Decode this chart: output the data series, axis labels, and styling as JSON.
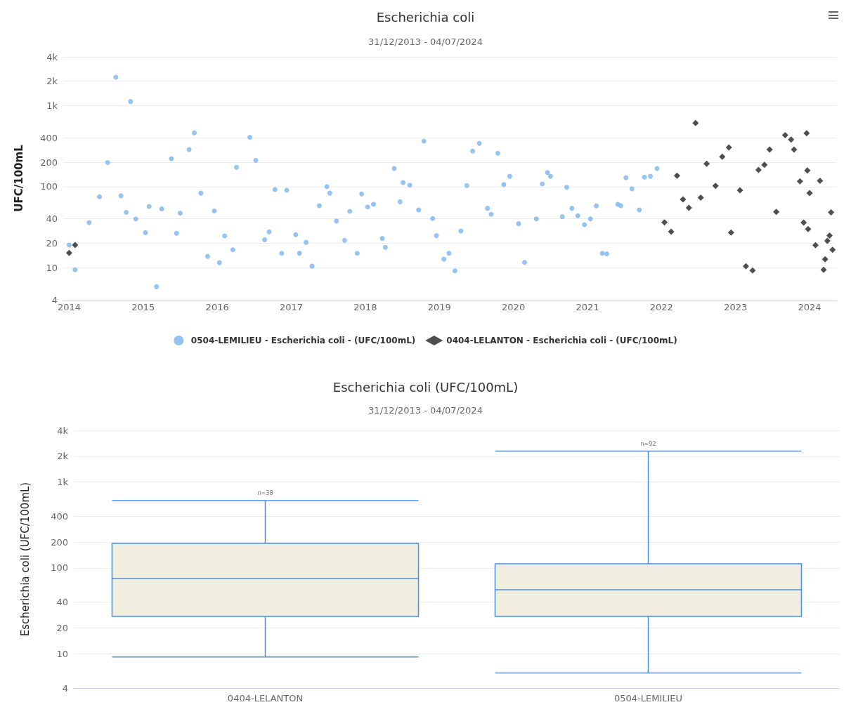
{
  "chart_data": [
    {
      "type": "scatter",
      "title": "Escherichia coli",
      "subtitle": "31/12/2013 - 04/07/2024",
      "ylabel": "UFC/100mL",
      "log": "y",
      "grid": "y",
      "legend": "bottom",
      "xlim": [
        2013.92,
        2024.36
      ],
      "xticks": [
        2014,
        2015,
        2016,
        2017,
        2018,
        2019,
        2020,
        2021,
        2022,
        2023,
        2024
      ],
      "ylim": [
        4,
        4000
      ],
      "yticks": [
        4,
        10,
        20,
        40,
        100,
        200,
        400,
        {
          "value": 1000,
          "label": "1k"
        },
        {
          "value": 2000,
          "label": "2k"
        },
        {
          "value": 4000,
          "label": "4k"
        }
      ],
      "series": [
        {
          "name": "0504-LEMILIEU - Escherichia coli - (UFC/100mL)",
          "color": "#7cb5ec",
          "marker": "circle",
          "x": [
            2014.0,
            2014.08,
            2014.27,
            2014.41,
            2014.52,
            2014.63,
            2014.7,
            2014.77,
            2014.83,
            2014.9,
            2015.03,
            2015.08,
            2015.18,
            2015.25,
            2015.38,
            2015.45,
            2015.5,
            2015.62,
            2015.69,
            2015.78,
            2015.87,
            2015.96,
            2016.03,
            2016.1,
            2016.21,
            2016.26,
            2016.44,
            2016.52,
            2016.64,
            2016.7,
            2016.78,
            2016.87,
            2016.94,
            2017.06,
            2017.11,
            2017.2,
            2017.28,
            2017.38,
            2017.48,
            2017.52,
            2017.61,
            2017.72,
            2017.79,
            2017.89,
            2017.95,
            2018.03,
            2018.11,
            2018.23,
            2018.27,
            2018.39,
            2018.47,
            2018.51,
            2018.6,
            2018.72,
            2018.79,
            2018.91,
            2018.96,
            2019.06,
            2019.13,
            2019.21,
            2019.29,
            2019.37,
            2019.45,
            2019.54,
            2019.65,
            2019.7,
            2019.79,
            2019.87,
            2019.95,
            2020.07,
            2020.15,
            2020.31,
            2020.39,
            2020.46,
            2020.5,
            2020.66,
            2020.72,
            2020.79,
            2020.87,
            2020.96,
            2021.04,
            2021.12,
            2021.2,
            2021.26,
            2021.41,
            2021.45,
            2021.52,
            2021.6,
            2021.7,
            2021.77,
            2021.85,
            2021.94
          ],
          "values": [
            19,
            9.4,
            36,
            75,
            198,
            2245,
            77,
            48,
            1123,
            40,
            27,
            57,
            5.8,
            53,
            221,
            26.5,
            47,
            287,
            461,
            83,
            13.7,
            50,
            11.5,
            24.6,
            16.6,
            173,
            406,
            211,
            22,
            27.6,
            92,
            15,
            90,
            25.5,
            15,
            20.5,
            10.4,
            58,
            100,
            83,
            37.5,
            21.7,
            49.5,
            15,
            81,
            56,
            60.5,
            22.9,
            17.8,
            167,
            65,
            112,
            104,
            51.5,
            365,
            40.3,
            24.8,
            12.7,
            15,
            9.1,
            28.3,
            103,
            274,
            341,
            54,
            45.5,
            258,
            106,
            134,
            34.8,
            11.6,
            40,
            108,
            149,
            134,
            42.5,
            98,
            54,
            43.7,
            33.9,
            40,
            57.8,
            15,
            14.8,
            60.5,
            58,
            129,
            94,
            51.5,
            131,
            134,
            167
          ]
        },
        {
          "name": "0404-LELANTON - Escherichia coli - (UFC/100mL)",
          "color": "#222222",
          "marker": "diamond",
          "x": [
            2014.0,
            2014.08,
            2022.04,
            2022.13,
            2022.21,
            2022.29,
            2022.37,
            2022.46,
            2022.53,
            2022.61,
            2022.73,
            2022.82,
            2022.91,
            2022.94,
            2023.06,
            2023.14,
            2023.23,
            2023.31,
            2023.39,
            2023.46,
            2023.55,
            2023.67,
            2023.75,
            2023.79,
            2023.87,
            2023.92,
            2023.96,
            2023.97,
            2023.98,
            2024.0,
            2024.08,
            2024.14,
            2024.19,
            2024.21,
            2024.24,
            2024.27,
            2024.29,
            2024.31
          ],
          "values": [
            15.2,
            19,
            36.2,
            27.7,
            136,
            69.5,
            54.7,
            610,
            73,
            191,
            102,
            234,
            305,
            27,
            90,
            10.4,
            9.2,
            161,
            186,
            287,
            48.8,
            431,
            382,
            287,
            116,
            36,
            457,
            158,
            29.9,
            83,
            18.9,
            118,
            9.4,
            12.7,
            21.4,
            24.8,
            48,
            16.6
          ]
        }
      ]
    },
    {
      "type": "box",
      "title": "Escherichia coli (UFC/100mL)",
      "subtitle": "31/12/2013 - 04/07/2024",
      "ylabel": "Escherichia coli (UFC/100mL)",
      "log": "y",
      "grid": "y",
      "legend": false,
      "categories": [
        "0404-LELANTON",
        "0504-LEMILIEU"
      ],
      "ylim": [
        4,
        4000
      ],
      "yticks": [
        4,
        10,
        20,
        40,
        100,
        200,
        400,
        {
          "value": 1000,
          "label": "1k"
        },
        {
          "value": 2000,
          "label": "2k"
        },
        {
          "value": 4000,
          "label": "4k"
        }
      ],
      "series": [
        {
          "color": "#4a90e2",
          "boxes": [
            {
              "low": 9.2,
              "q1": 27.3,
              "median": 75.5,
              "q3": 193,
              "high": 610
            },
            {
              "low": 6,
              "q1": 27.3,
              "median": 55.8,
              "q3": 112,
              "high": 2300
            }
          ]
        }
      ],
      "annotations": [
        {
          "text": "n=38",
          "x": "0404-LELANTON",
          "y": 610
        },
        {
          "text": "n=92",
          "x": "0504-LEMILIEU",
          "y": 2300
        }
      ]
    }
  ]
}
